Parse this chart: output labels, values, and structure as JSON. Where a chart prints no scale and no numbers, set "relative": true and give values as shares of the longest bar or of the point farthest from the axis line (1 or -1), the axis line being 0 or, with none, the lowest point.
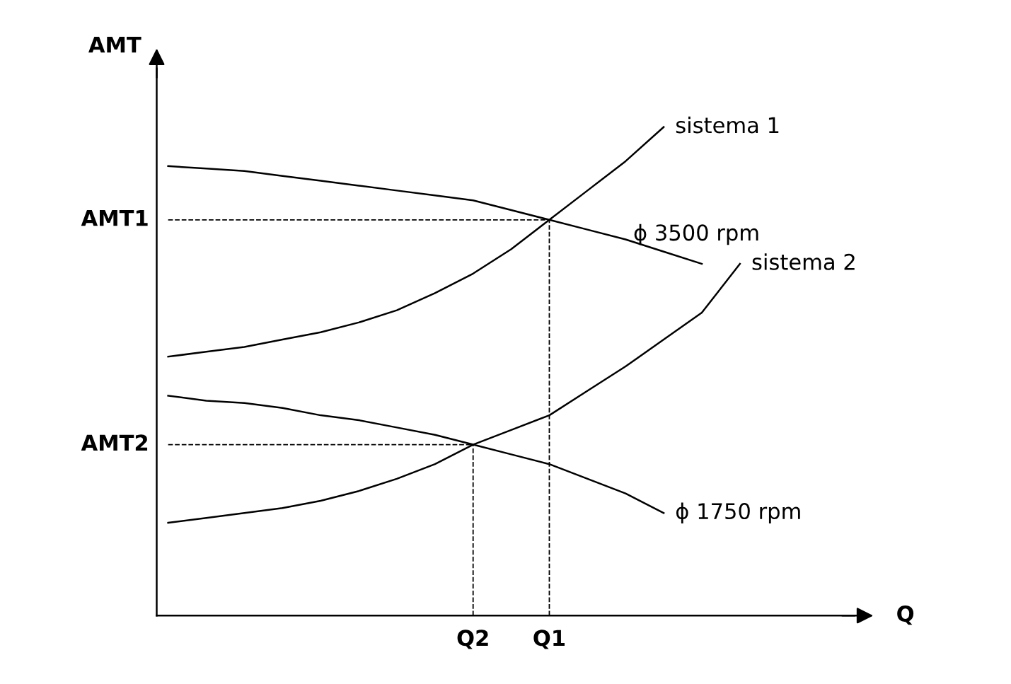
{
  "chart_data": {
    "type": "line",
    "relative": true,
    "xlabel": "Q",
    "ylabel": "AMT",
    "categories": [
      null,
      null,
      null,
      null,
      null,
      null,
      null,
      null,
      "Q2",
      null,
      "Q1",
      null,
      null,
      null,
      null,
      null,
      null,
      null,
      null
    ],
    "series": [
      {
        "name": "sistema 1",
        "color": "#000000",
        "values": [
          0.53,
          0.54,
          0.55,
          0.565,
          0.58,
          0.6,
          0.625,
          0.66,
          0.7,
          0.75,
          0.81,
          0.87,
          0.93,
          1.0,
          null,
          null,
          null,
          null,
          null
        ]
      },
      {
        "name": "ϕ 3500 rpm",
        "color": "#000000",
        "values": [
          0.92,
          0.915,
          0.91,
          0.9,
          0.89,
          0.88,
          0.87,
          0.86,
          0.85,
          0.83,
          0.81,
          0.79,
          0.77,
          0.745,
          0.72,
          null,
          null,
          null,
          null
        ]
      },
      {
        "name": "sistema 2",
        "color": "#000000",
        "values": [
          0.19,
          0.2,
          0.21,
          0.22,
          0.235,
          0.255,
          0.28,
          0.31,
          0.35,
          0.38,
          0.41,
          0.46,
          0.51,
          0.565,
          0.62,
          0.72,
          null,
          null,
          null
        ]
      },
      {
        "name": "ϕ 1750 rpm",
        "color": "#000000",
        "values": [
          0.45,
          0.44,
          0.435,
          0.425,
          0.41,
          0.4,
          0.385,
          0.37,
          0.35,
          0.33,
          0.31,
          0.28,
          0.25,
          0.21,
          null,
          null,
          null,
          null,
          null
        ]
      }
    ],
    "ref_lines": [
      {
        "axis": "y",
        "value": 0.81,
        "label": "AMT1",
        "line_style": "dashed",
        "color": "#000000"
      },
      {
        "axis": "y",
        "value": 0.35,
        "label": "AMT2",
        "line_style": "dashed",
        "color": "#000000"
      },
      {
        "axis": "x",
        "value": "Q1",
        "line_style": "dashed",
        "color": "#000000"
      },
      {
        "axis": "x",
        "value": "Q2",
        "line_style": "dashed",
        "color": "#000000"
      }
    ],
    "grid": false,
    "legend": false,
    "marker": "none",
    "line_style": "solid"
  }
}
